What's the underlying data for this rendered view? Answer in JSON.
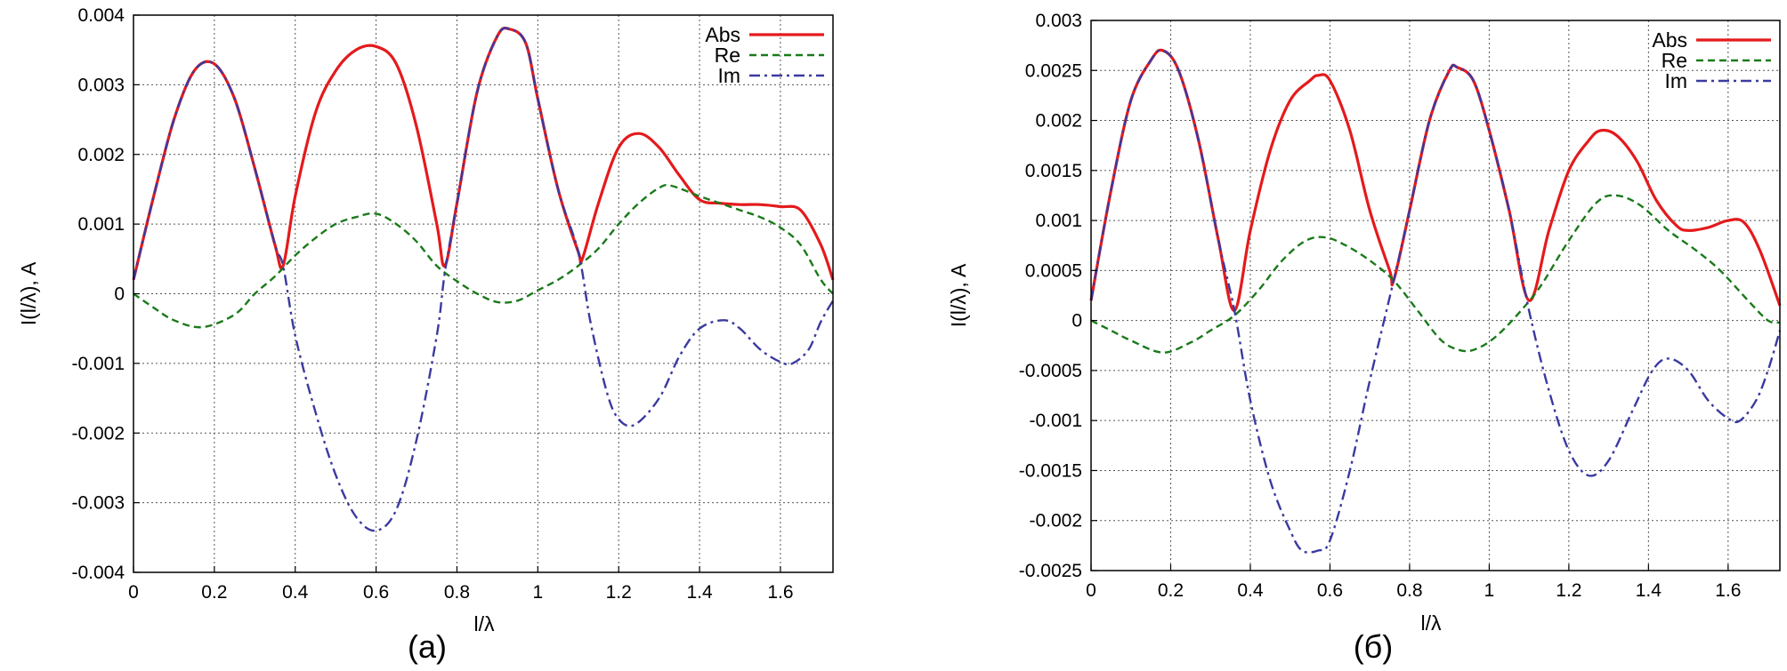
{
  "chart_data": [
    {
      "type": "line",
      "caption": "(a)",
      "xlabel": "l/λ",
      "ylabel": "I(l/λ), A",
      "xlim": [
        0,
        1.73
      ],
      "ylim": [
        -0.004,
        0.004
      ],
      "xticks": [
        0,
        0.2,
        0.4,
        0.6,
        0.8,
        1,
        1.2,
        1.4,
        1.6
      ],
      "xtick_labels": [
        "0",
        "0.2",
        "0.4",
        "0.6",
        "0.8",
        "1",
        "1.2",
        "1.4",
        "1.6"
      ],
      "yticks": [
        0.004,
        0.003,
        0.002,
        0.001,
        0,
        -0.001,
        -0.002,
        -0.003,
        -0.004
      ],
      "ytick_labels": [
        "0.004",
        "0.003",
        "0.002",
        "0.001",
        "0",
        "-0.001",
        "-0.002",
        "-0.003",
        "-0.004"
      ],
      "grid": true,
      "legend_position": "top-right",
      "series": [
        {
          "name": "Abs",
          "color": "#e41a1c",
          "style": "solid",
          "x": [
            0,
            0.05,
            0.1,
            0.15,
            0.2,
            0.25,
            0.3,
            0.35,
            0.37,
            0.4,
            0.45,
            0.5,
            0.55,
            0.6,
            0.65,
            0.7,
            0.75,
            0.77,
            0.8,
            0.85,
            0.9,
            0.93,
            0.97,
            1.0,
            1.05,
            1.1,
            1.11,
            1.15,
            1.2,
            1.25,
            1.3,
            1.35,
            1.4,
            1.45,
            1.5,
            1.55,
            1.6,
            1.65,
            1.7,
            1.73
          ],
          "y": [
            0.0002,
            0.0014,
            0.0025,
            0.0032,
            0.0033,
            0.0028,
            0.0018,
            0.0007,
            0.0004,
            0.0014,
            0.0026,
            0.0032,
            0.0035,
            0.00355,
            0.0033,
            0.0024,
            0.001,
            0.0004,
            0.0013,
            0.0029,
            0.0037,
            0.0038,
            0.0036,
            0.0028,
            0.0015,
            0.0006,
            0.0005,
            0.0013,
            0.0021,
            0.0023,
            0.0021,
            0.0017,
            0.00135,
            0.0013,
            0.00128,
            0.00128,
            0.00125,
            0.0012,
            0.0007,
            0.0002
          ]
        },
        {
          "name": "Re",
          "color": "#1a7a1a",
          "style": "dashed",
          "x": [
            0,
            0.05,
            0.1,
            0.17,
            0.25,
            0.3,
            0.35,
            0.4,
            0.45,
            0.5,
            0.55,
            0.6,
            0.65,
            0.7,
            0.75,
            0.8,
            0.85,
            0.9,
            0.95,
            1.0,
            1.05,
            1.1,
            1.15,
            1.2,
            1.25,
            1.3,
            1.33,
            1.4,
            1.45,
            1.5,
            1.55,
            1.6,
            1.65,
            1.7,
            1.73
          ],
          "y": [
            0,
            -0.0002,
            -0.00038,
            -0.00048,
            -0.0003,
            0,
            0.00025,
            0.00055,
            0.0008,
            0.001,
            0.0011,
            0.00115,
            0.001,
            0.00075,
            0.0004,
            0.00018,
            0,
            -0.00012,
            -0.0001,
            5e-05,
            0.0002,
            0.0004,
            0.00065,
            0.001,
            0.0013,
            0.00152,
            0.00155,
            0.0014,
            0.0013,
            0.0012,
            0.0011,
            0.00095,
            0.0007,
            0.0002,
            0
          ]
        },
        {
          "name": "Im",
          "color": "#3a3aa0",
          "style": "dashdot",
          "x": [
            0,
            0.05,
            0.1,
            0.15,
            0.2,
            0.25,
            0.3,
            0.35,
            0.37,
            0.4,
            0.45,
            0.5,
            0.55,
            0.6,
            0.65,
            0.7,
            0.75,
            0.77,
            0.8,
            0.85,
            0.9,
            0.93,
            0.97,
            1.0,
            1.05,
            1.1,
            1.13,
            1.17,
            1.2,
            1.24,
            1.3,
            1.35,
            1.4,
            1.46,
            1.5,
            1.55,
            1.6,
            1.63,
            1.67,
            1.7,
            1.73
          ],
          "y": [
            0.0002,
            0.0014,
            0.0025,
            0.0032,
            0.0033,
            0.0028,
            0.0018,
            0.0007,
            0.0004,
            -0.0006,
            -0.0017,
            -0.0026,
            -0.0032,
            -0.0034,
            -0.0031,
            -0.0021,
            -0.0006,
            0.0003,
            0.0013,
            0.0029,
            0.0037,
            0.0038,
            0.0036,
            0.0028,
            0.0015,
            0.0006,
            -0.0004,
            -0.0014,
            -0.0018,
            -0.00188,
            -0.0015,
            -0.0009,
            -0.0005,
            -0.00038,
            -0.0005,
            -0.0008,
            -0.00098,
            -0.001,
            -0.0008,
            -0.0004,
            -0.0001
          ]
        }
      ]
    },
    {
      "type": "line",
      "caption": "(б)",
      "xlabel": "l/λ",
      "ylabel": "I(l/λ), A",
      "xlim": [
        0,
        1.73
      ],
      "ylim": [
        -0.0025,
        0.003
      ],
      "xticks": [
        0,
        0.2,
        0.4,
        0.6,
        0.8,
        1,
        1.2,
        1.4,
        1.6
      ],
      "xtick_labels": [
        "0",
        "0.2",
        "0.4",
        "0.6",
        "0.8",
        "1",
        "1.2",
        "1.4",
        "1.6"
      ],
      "yticks": [
        0.003,
        0.0025,
        0.002,
        0.0015,
        0.001,
        0.0005,
        0,
        -0.0005,
        -0.001,
        -0.0015,
        -0.002,
        -0.0025
      ],
      "ytick_labels": [
        "0.003",
        "0.0025",
        "0.002",
        "0.0015",
        "0.001",
        "0.0005",
        "0",
        "-0.0005",
        "-0.001",
        "-0.0015",
        "-0.002",
        "-0.0025"
      ],
      "grid": true,
      "legend_position": "top-right",
      "series": [
        {
          "name": "Abs",
          "color": "#e41a1c",
          "style": "solid",
          "x": [
            0,
            0.05,
            0.1,
            0.15,
            0.18,
            0.22,
            0.27,
            0.32,
            0.36,
            0.4,
            0.45,
            0.5,
            0.55,
            0.57,
            0.6,
            0.65,
            0.7,
            0.75,
            0.76,
            0.8,
            0.85,
            0.9,
            0.92,
            0.96,
            1.0,
            1.05,
            1.1,
            1.15,
            1.2,
            1.25,
            1.28,
            1.32,
            1.37,
            1.42,
            1.47,
            1.5,
            1.55,
            1.6,
            1.64,
            1.68,
            1.73
          ],
          "y": [
            0.0002,
            0.0013,
            0.0022,
            0.0026,
            0.0027,
            0.0025,
            0.0018,
            0.0008,
            0.0001,
            0.0009,
            0.0017,
            0.0022,
            0.0024,
            0.00245,
            0.0024,
            0.0019,
            0.0011,
            0.0005,
            0.0004,
            0.0011,
            0.002,
            0.0025,
            0.00253,
            0.0024,
            0.0019,
            0.0011,
            0.0002,
            0.0009,
            0.0015,
            0.0018,
            0.0019,
            0.00185,
            0.0016,
            0.0012,
            0.00095,
            0.0009,
            0.00093,
            0.001,
            0.00098,
            0.0007,
            0.00015
          ]
        },
        {
          "name": "Re",
          "color": "#1a7a1a",
          "style": "dashed",
          "x": [
            0,
            0.05,
            0.1,
            0.18,
            0.25,
            0.3,
            0.36,
            0.42,
            0.48,
            0.54,
            0.59,
            0.64,
            0.7,
            0.76,
            0.82,
            0.88,
            0.93,
            0.97,
            1.02,
            1.08,
            1.13,
            1.2,
            1.27,
            1.32,
            1.38,
            1.45,
            1.52,
            1.58,
            1.65,
            1.7,
            1.73
          ],
          "y": [
            0,
            -0.0001,
            -0.0002,
            -0.00032,
            -0.00022,
            -0.0001,
            5e-05,
            0.0003,
            0.0006,
            0.0008,
            0.00083,
            0.00075,
            0.0006,
            0.0004,
            0.0001,
            -0.0002,
            -0.0003,
            -0.00028,
            -0.00015,
            0.0001,
            0.00035,
            0.0008,
            0.00118,
            0.00125,
            0.00115,
            0.0009,
            0.0007,
            0.0005,
            0.0002,
            0,
            -2e-05
          ]
        },
        {
          "name": "Im",
          "color": "#3a3aa0",
          "style": "dashdot",
          "x": [
            0,
            0.05,
            0.1,
            0.15,
            0.18,
            0.22,
            0.27,
            0.32,
            0.36,
            0.4,
            0.45,
            0.5,
            0.53,
            0.57,
            0.6,
            0.65,
            0.7,
            0.76,
            0.8,
            0.85,
            0.9,
            0.92,
            0.96,
            1.0,
            1.05,
            1.1,
            1.15,
            1.2,
            1.25,
            1.3,
            1.36,
            1.41,
            1.45,
            1.5,
            1.55,
            1.6,
            1.63,
            1.67,
            1.7,
            1.73
          ],
          "y": [
            0.0002,
            0.0013,
            0.0022,
            0.0026,
            0.0027,
            0.0025,
            0.0018,
            0.0008,
            0.0001,
            -0.0008,
            -0.0016,
            -0.0021,
            -0.0023,
            -0.0023,
            -0.0022,
            -0.0015,
            -0.0006,
            0.0004,
            0.0011,
            0.002,
            0.0025,
            0.00253,
            0.0024,
            0.0019,
            0.0011,
            0.0001,
            -0.0007,
            -0.0013,
            -0.00155,
            -0.0014,
            -0.0009,
            -0.0005,
            -0.00038,
            -0.0005,
            -0.0008,
            -0.00098,
            -0.001,
            -0.0008,
            -0.0005,
            -0.0001
          ]
        }
      ]
    }
  ]
}
